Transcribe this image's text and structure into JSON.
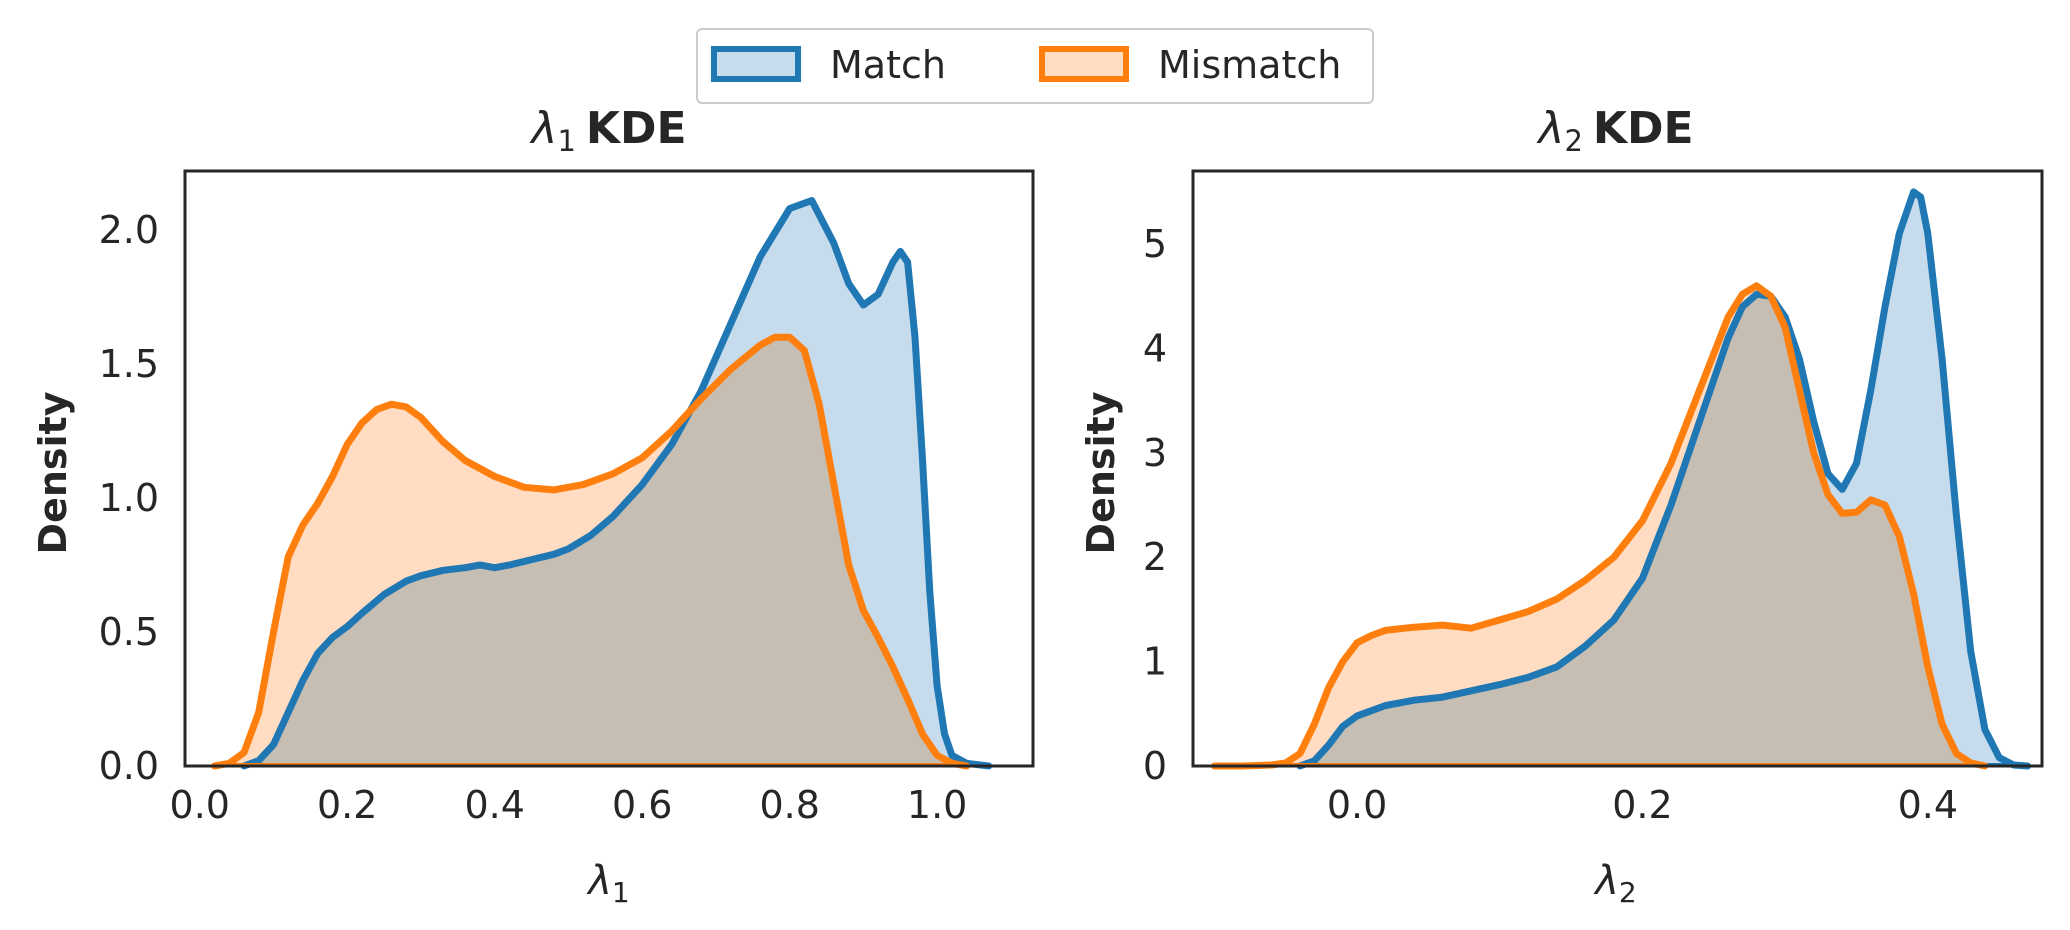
{
  "legend": {
    "entries": [
      {
        "label": "Match",
        "color": "#1f77b4",
        "fill": "#c6dbec"
      },
      {
        "label": "Mismatch",
        "color": "#ff7f0e",
        "fill": "#ffdcc2"
      }
    ]
  },
  "overlap_fill": "#d1c1b1",
  "chart_data": [
    {
      "type": "area",
      "title_symbol": "λ",
      "title_sub": "1",
      "title": "KDE",
      "xlabel_symbol": "λ",
      "xlabel_sub": "1",
      "ylabel": "Density",
      "xlim": [
        -0.02,
        1.13
      ],
      "ylim": [
        0,
        2.22
      ],
      "xticks": [
        0.0,
        0.2,
        0.4,
        0.6,
        0.8,
        1.0
      ],
      "xtick_labels": [
        "0.0",
        "0.2",
        "0.4",
        "0.6",
        "0.8",
        "1.0"
      ],
      "yticks": [
        0.0,
        0.5,
        1.0,
        1.5,
        2.0
      ],
      "ytick_labels": [
        "0.0",
        "0.5",
        "1.0",
        "1.5",
        "2.0"
      ],
      "series": [
        {
          "name": "Match",
          "x": [
            0.06,
            0.08,
            0.1,
            0.12,
            0.14,
            0.16,
            0.18,
            0.2,
            0.22,
            0.25,
            0.28,
            0.3,
            0.33,
            0.36,
            0.38,
            0.4,
            0.42,
            0.45,
            0.48,
            0.5,
            0.53,
            0.56,
            0.6,
            0.64,
            0.68,
            0.72,
            0.76,
            0.8,
            0.83,
            0.86,
            0.88,
            0.9,
            0.92,
            0.94,
            0.95,
            0.96,
            0.97,
            0.98,
            0.99,
            1.0,
            1.01,
            1.02,
            1.04,
            1.07
          ],
          "y": [
            0.0,
            0.02,
            0.08,
            0.2,
            0.32,
            0.42,
            0.48,
            0.52,
            0.57,
            0.64,
            0.69,
            0.71,
            0.73,
            0.74,
            0.75,
            0.74,
            0.75,
            0.77,
            0.79,
            0.81,
            0.86,
            0.93,
            1.05,
            1.2,
            1.4,
            1.65,
            1.9,
            2.08,
            2.11,
            1.95,
            1.8,
            1.72,
            1.76,
            1.88,
            1.92,
            1.88,
            1.6,
            1.15,
            0.65,
            0.3,
            0.12,
            0.04,
            0.01,
            0.0
          ]
        },
        {
          "name": "Mismatch",
          "x": [
            0.02,
            0.04,
            0.06,
            0.08,
            0.1,
            0.12,
            0.14,
            0.16,
            0.18,
            0.2,
            0.22,
            0.24,
            0.26,
            0.28,
            0.3,
            0.33,
            0.36,
            0.4,
            0.44,
            0.48,
            0.52,
            0.56,
            0.6,
            0.64,
            0.68,
            0.72,
            0.76,
            0.78,
            0.8,
            0.82,
            0.84,
            0.86,
            0.88,
            0.9,
            0.92,
            0.94,
            0.96,
            0.98,
            1.0,
            1.02,
            1.04
          ],
          "y": [
            0.0,
            0.01,
            0.05,
            0.2,
            0.5,
            0.78,
            0.9,
            0.98,
            1.08,
            1.2,
            1.28,
            1.33,
            1.35,
            1.34,
            1.3,
            1.21,
            1.14,
            1.08,
            1.04,
            1.03,
            1.05,
            1.09,
            1.15,
            1.25,
            1.37,
            1.48,
            1.57,
            1.6,
            1.6,
            1.55,
            1.35,
            1.05,
            0.75,
            0.58,
            0.48,
            0.37,
            0.25,
            0.12,
            0.04,
            0.01,
            0.0
          ]
        }
      ]
    },
    {
      "type": "area",
      "title_symbol": "λ",
      "title_sub": "2",
      "title": "KDE",
      "xlabel_symbol": "λ",
      "xlabel_sub": "2",
      "ylabel": "Density",
      "xlim": [
        -0.115,
        0.48
      ],
      "ylim": [
        0,
        5.7
      ],
      "xticks": [
        0.0,
        0.2,
        0.4
      ],
      "xtick_labels": [
        "0.0",
        "0.2",
        "0.4"
      ],
      "yticks": [
        0,
        1,
        2,
        3,
        4,
        5
      ],
      "ytick_labels": [
        "0",
        "1",
        "2",
        "3",
        "4",
        "5"
      ],
      "series": [
        {
          "name": "Match",
          "x": [
            -0.04,
            -0.03,
            -0.02,
            -0.01,
            0.0,
            0.02,
            0.04,
            0.06,
            0.08,
            0.1,
            0.12,
            0.14,
            0.16,
            0.18,
            0.2,
            0.22,
            0.24,
            0.26,
            0.27,
            0.28,
            0.29,
            0.3,
            0.31,
            0.32,
            0.33,
            0.34,
            0.35,
            0.36,
            0.37,
            0.38,
            0.39,
            0.395,
            0.4,
            0.41,
            0.42,
            0.43,
            0.44,
            0.45,
            0.46,
            0.47
          ],
          "y": [
            0.0,
            0.05,
            0.2,
            0.38,
            0.48,
            0.58,
            0.63,
            0.66,
            0.72,
            0.78,
            0.85,
            0.95,
            1.15,
            1.4,
            1.8,
            2.5,
            3.3,
            4.1,
            4.4,
            4.52,
            4.5,
            4.3,
            3.9,
            3.3,
            2.8,
            2.65,
            2.9,
            3.6,
            4.4,
            5.1,
            5.5,
            5.45,
            5.1,
            3.9,
            2.4,
            1.1,
            0.35,
            0.08,
            0.01,
            0.0
          ]
        },
        {
          "name": "Mismatch",
          "x": [
            -0.1,
            -0.08,
            -0.06,
            -0.05,
            -0.04,
            -0.03,
            -0.02,
            -0.01,
            0.0,
            0.01,
            0.02,
            0.04,
            0.06,
            0.08,
            0.1,
            0.12,
            0.14,
            0.16,
            0.18,
            0.2,
            0.22,
            0.24,
            0.26,
            0.27,
            0.28,
            0.29,
            0.3,
            0.31,
            0.32,
            0.33,
            0.34,
            0.35,
            0.36,
            0.37,
            0.38,
            0.39,
            0.4,
            0.41,
            0.42,
            0.43,
            0.44
          ],
          "y": [
            0.0,
            0.0,
            0.01,
            0.03,
            0.12,
            0.4,
            0.75,
            1.0,
            1.18,
            1.25,
            1.3,
            1.33,
            1.35,
            1.32,
            1.4,
            1.48,
            1.6,
            1.78,
            2.0,
            2.35,
            2.9,
            3.6,
            4.3,
            4.52,
            4.6,
            4.5,
            4.2,
            3.6,
            3.0,
            2.6,
            2.42,
            2.43,
            2.55,
            2.5,
            2.2,
            1.65,
            0.95,
            0.4,
            0.12,
            0.03,
            0.0
          ]
        }
      ]
    }
  ]
}
